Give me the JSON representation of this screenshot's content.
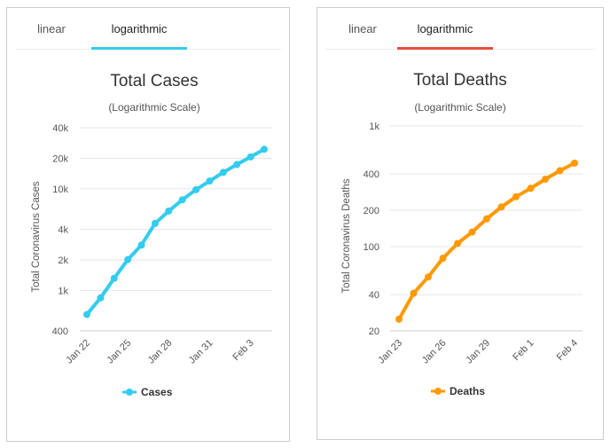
{
  "tabs_labels": {
    "linear": "linear",
    "logarithmic": "logarithmic"
  },
  "left": {
    "accent": "#33ccee",
    "chart_data": {
      "type": "line",
      "title": "Total Cases",
      "subtitle": "(Logarithmic Scale)",
      "ylabel": "Total Coronavirus Cases",
      "xlabel": "",
      "y_scale": "log",
      "ylim": [
        400,
        40000
      ],
      "y_ticks": [
        {
          "value": 400,
          "label": "400"
        },
        {
          "value": 1000,
          "label": "1k"
        },
        {
          "value": 2000,
          "label": "2k"
        },
        {
          "value": 4000,
          "label": "4k"
        },
        {
          "value": 10000,
          "label": "10k"
        },
        {
          "value": 20000,
          "label": "20k"
        },
        {
          "value": 40000,
          "label": "40k"
        }
      ],
      "categories": [
        "Jan 22",
        "Jan 23",
        "Jan 24",
        "Jan 25",
        "Jan 26",
        "Jan 27",
        "Jan 28",
        "Jan 29",
        "Jan 30",
        "Jan 31",
        "Feb 1",
        "Feb 2",
        "Feb 3",
        "Feb 4"
      ],
      "x_tick_labels": [
        "Jan 22",
        "Jan 25",
        "Jan 28",
        "Jan 31",
        "Feb 3"
      ],
      "series": [
        {
          "name": "Cases",
          "values": [
            580,
            845,
            1317,
            2015,
            2800,
            4581,
            6058,
            7813,
            9823,
            11950,
            14553,
            17391,
            20630,
            24554
          ]
        }
      ],
      "legend": "bottom-center"
    }
  },
  "right": {
    "accent": "#ff9900",
    "chart_data": {
      "type": "line",
      "title": "Total Deaths",
      "subtitle": "(Logarithmic Scale)",
      "ylabel": "Total Coronavirus Deaths",
      "xlabel": "",
      "y_scale": "log",
      "ylim": [
        20,
        1000
      ],
      "y_ticks": [
        {
          "value": 20,
          "label": "20"
        },
        {
          "value": 40,
          "label": "40"
        },
        {
          "value": 100,
          "label": "100"
        },
        {
          "value": 200,
          "label": "200"
        },
        {
          "value": 400,
          "label": "400"
        },
        {
          "value": 1000,
          "label": "1k"
        }
      ],
      "categories": [
        "Jan 23",
        "Jan 24",
        "Jan 25",
        "Jan 26",
        "Jan 27",
        "Jan 28",
        "Jan 29",
        "Jan 30",
        "Jan 31",
        "Feb 1",
        "Feb 2",
        "Feb 3",
        "Feb 4"
      ],
      "x_tick_labels": [
        "Jan 23",
        "Jan 26",
        "Jan 29",
        "Feb 1",
        "Feb 4"
      ],
      "series": [
        {
          "name": "Deaths",
          "values": [
            25,
            41,
            56,
            80,
            106,
            132,
            170,
            213,
            259,
            304,
            362,
            426,
            492
          ]
        }
      ],
      "legend": "bottom-center"
    }
  }
}
